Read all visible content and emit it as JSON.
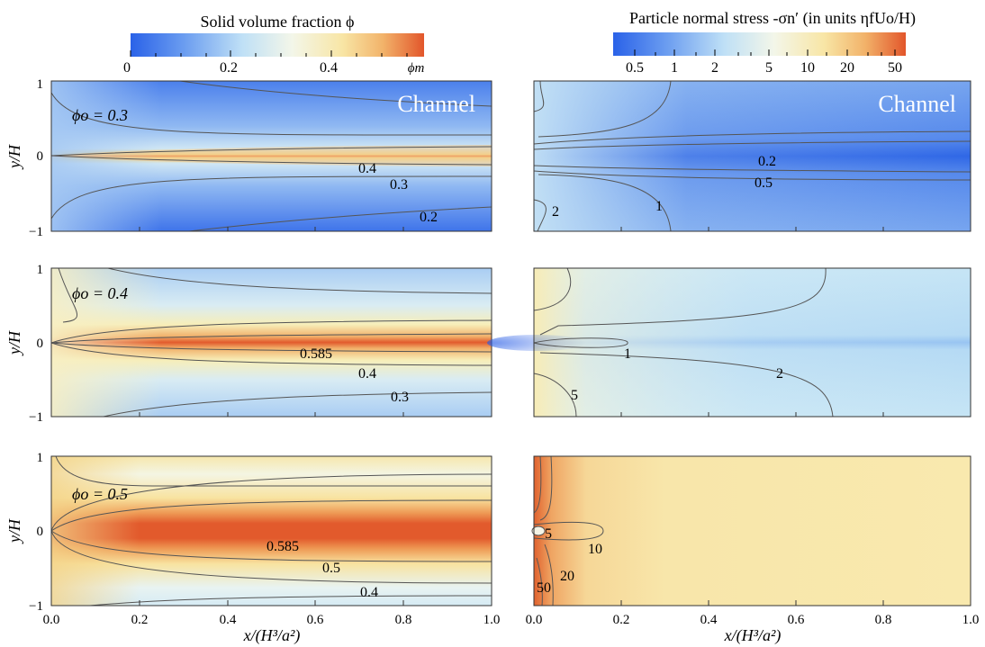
{
  "colorbars": {
    "left": {
      "title": "Solid volume fraction  ϕ",
      "ticks": [
        {
          "label": "0",
          "value": 0
        },
        {
          "label": "0.2",
          "value": 0.2
        },
        {
          "label": "0.4",
          "value": 0.4
        },
        {
          "label": "ϕm",
          "value": 0.585
        }
      ]
    },
    "right": {
      "title": "Particle normal stress -σn′ (in units  ηfUo/H)",
      "scale": "log",
      "ticks": [
        {
          "label": "0.5",
          "value": 0.5
        },
        {
          "label": "1",
          "value": 1
        },
        {
          "label": "2",
          "value": 2
        },
        {
          "label": "5",
          "value": 5
        },
        {
          "label": "10",
          "value": 10
        },
        {
          "label": "20",
          "value": 20
        },
        {
          "label": "50",
          "value": 50
        }
      ]
    }
  },
  "chart_data": [
    {
      "type": "heatmap",
      "panel": "phi-0.3",
      "annotation": "ϕo = 0.3",
      "corner_text": "Channel",
      "xlabel": "",
      "ylabel": "y/H",
      "xlim": [
        0,
        1
      ],
      "ylim": [
        -1,
        1
      ],
      "contours": [
        {
          "label": "0.4",
          "value": 0.4
        },
        {
          "label": "0.3",
          "value": 0.3
        },
        {
          "label": "0.2",
          "value": 0.2
        }
      ]
    },
    {
      "type": "heatmap",
      "panel": "stress-0.3",
      "annotation": "",
      "corner_text": "Channel",
      "xlabel": "",
      "ylabel": "",
      "xlim": [
        0,
        1
      ],
      "ylim": [
        -1,
        1
      ],
      "contours": [
        {
          "label": "0.2",
          "value": 0.2
        },
        {
          "label": "0.5",
          "value": 0.5
        },
        {
          "label": "1",
          "value": 1
        },
        {
          "label": "2",
          "value": 2
        }
      ]
    },
    {
      "type": "heatmap",
      "panel": "phi-0.4",
      "annotation": "ϕo = 0.4",
      "corner_text": "",
      "xlabel": "",
      "ylabel": "y/H",
      "xlim": [
        0,
        1
      ],
      "ylim": [
        -1,
        1
      ],
      "contours": [
        {
          "label": "0.585",
          "value": 0.585
        },
        {
          "label": "0.4",
          "value": 0.4
        },
        {
          "label": "0.3",
          "value": 0.3
        }
      ]
    },
    {
      "type": "heatmap",
      "panel": "stress-0.4",
      "annotation": "",
      "corner_text": "",
      "xlabel": "",
      "ylabel": "",
      "xlim": [
        0,
        1
      ],
      "ylim": [
        -1,
        1
      ],
      "contours": [
        {
          "label": "1",
          "value": 1
        },
        {
          "label": "2",
          "value": 2
        },
        {
          "label": "5",
          "value": 5
        }
      ]
    },
    {
      "type": "heatmap",
      "panel": "phi-0.5",
      "annotation": "ϕo = 0.5",
      "corner_text": "",
      "xlabel": "x/(H³/a²)",
      "ylabel": "y/H",
      "xlim": [
        0,
        1
      ],
      "ylim": [
        -1,
        1
      ],
      "contours": [
        {
          "label": "0.585",
          "value": 0.585
        },
        {
          "label": "0.5",
          "value": 0.5
        },
        {
          "label": "0.4",
          "value": 0.4
        }
      ]
    },
    {
      "type": "heatmap",
      "panel": "stress-0.5",
      "annotation": "",
      "corner_text": "",
      "xlabel": "x/(H³/a²)",
      "ylabel": "",
      "xlim": [
        0,
        1
      ],
      "ylim": [
        -1,
        1
      ],
      "contours": [
        {
          "label": "5",
          "value": 5
        },
        {
          "label": "10",
          "value": 10
        },
        {
          "label": "20",
          "value": 20
        },
        {
          "label": "50",
          "value": 50
        }
      ]
    }
  ],
  "axes": {
    "x_ticks": [
      "0.0",
      "0.2",
      "0.4",
      "0.6",
      "0.8",
      "1.0"
    ],
    "y_ticks": [
      "−1",
      "0",
      "1"
    ]
  }
}
